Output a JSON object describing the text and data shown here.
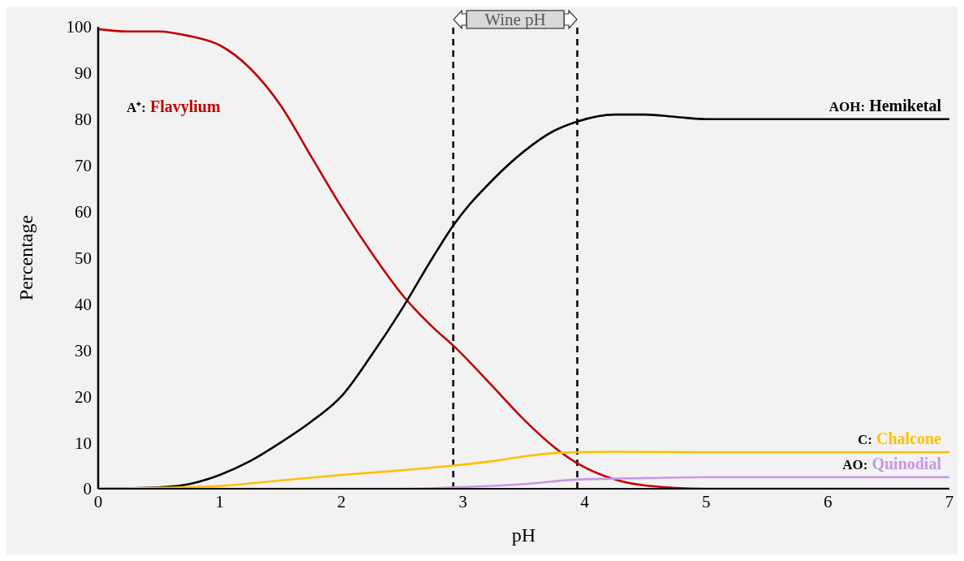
{
  "chart_data": {
    "type": "line",
    "xlabel": "pH",
    "ylabel": "Percentage",
    "xlim": [
      0,
      7
    ],
    "xticks": [
      0,
      1,
      2,
      3,
      4,
      5,
      6,
      7
    ],
    "ylim": [
      0,
      100
    ],
    "yticks": [
      0,
      10,
      20,
      30,
      40,
      50,
      60,
      70,
      80,
      90,
      100
    ],
    "grid": false,
    "legend": false,
    "marker": "none",
    "line_style": "solid",
    "ref_lines": [
      {
        "axis": "x",
        "value": 2.92,
        "line_style": "dashed",
        "color": "#000000"
      },
      {
        "axis": "x",
        "value": 3.94,
        "line_style": "dashed",
        "color": "#000000"
      }
    ],
    "annotations": [
      "Wine pH"
    ],
    "series": [
      {
        "name": "A⁺: Flavylium",
        "color": "#c00000",
        "x": [
          0,
          0.25,
          0.5,
          0.75,
          1,
          1.25,
          1.5,
          1.75,
          2,
          2.25,
          2.5,
          2.75,
          2.92,
          3.25,
          3.5,
          3.75,
          3.94,
          4.25,
          4.5,
          5,
          6,
          7
        ],
        "values": [
          99.5,
          99,
          99,
          98,
          96,
          91,
          83,
          72,
          61,
          51,
          42,
          35,
          31,
          22,
          15,
          9,
          5.5,
          2,
          0.7,
          0,
          0,
          0
        ]
      },
      {
        "name": "AOH: Hemiketal",
        "color": "#000000",
        "x": [
          0,
          0.5,
          0.75,
          1,
          1.25,
          1.5,
          1.75,
          2,
          2.25,
          2.5,
          2.75,
          2.92,
          3.25,
          3.5,
          3.75,
          3.94,
          4.25,
          4.5,
          4.75,
          5,
          6,
          7
        ],
        "values": [
          0,
          0.3,
          1,
          3,
          6,
          10,
          14.5,
          20,
          29,
          39,
          50,
          57,
          67,
          73,
          77.5,
          79.5,
          81,
          81,
          80.5,
          80,
          80,
          80
        ]
      },
      {
        "name": "C: Chalcone",
        "color": "#ffc000",
        "x": [
          0,
          0.5,
          1,
          1.5,
          2,
          2.5,
          2.92,
          3.25,
          3.5,
          3.8,
          4.25,
          5,
          6,
          7
        ],
        "values": [
          0,
          0.2,
          0.6,
          1.8,
          3,
          4,
          5,
          6,
          7,
          7.8,
          8,
          7.9,
          7.9,
          7.9
        ]
      },
      {
        "name": "AO: Quinodial",
        "color": "#c897e8",
        "x": [
          0,
          2.5,
          2.92,
          3.5,
          3.94,
          4.5,
          5,
          6,
          7
        ],
        "values": [
          0,
          0,
          0.3,
          1,
          2,
          2.3,
          2.5,
          2.5,
          2.5
        ]
      }
    ]
  }
}
